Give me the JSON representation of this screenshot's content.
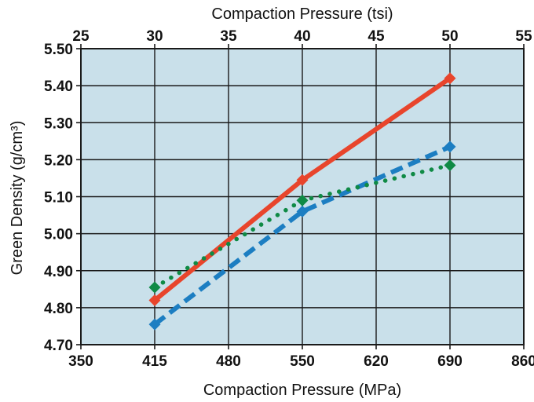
{
  "chart_data": {
    "type": "line",
    "top_title": "(partially cropped)",
    "xlabel_top": "Compaction Pressure (tsi)",
    "xlabel_bottom": "Compaction Pressure (MPa)",
    "ylabel": "Green Density (g/cm³)",
    "x_bottom_ticks": [
      "350",
      "415",
      "480",
      "550",
      "620",
      "690",
      "860"
    ],
    "x_top_ticks": [
      "25",
      "30",
      "35",
      "40",
      "45",
      "50",
      "55"
    ],
    "y_ticks": [
      "4.70",
      "4.80",
      "4.90",
      "5.00",
      "5.10",
      "5.20",
      "5.30",
      "5.40",
      "5.50"
    ],
    "xlim_tsi": [
      25,
      55
    ],
    "ylim": [
      4.7,
      5.5
    ],
    "grid": true,
    "plot_background": "#c9e0ea",
    "series": [
      {
        "color": "#e8452c",
        "line_style": "solid",
        "marker": "diamond",
        "points": [
          {
            "tsi": 30,
            "y": 4.82
          },
          {
            "tsi": 40,
            "y": 5.145
          },
          {
            "tsi": 50,
            "y": 5.42
          }
        ]
      },
      {
        "color": "#1c7ec2",
        "line_style": "dashed",
        "marker": "diamond",
        "points": [
          {
            "tsi": 30,
            "y": 4.755
          },
          {
            "tsi": 40,
            "y": 5.06
          },
          {
            "tsi": 50,
            "y": 5.235
          }
        ]
      },
      {
        "color": "#0f8a45",
        "line_style": "dotted",
        "marker": "diamond",
        "points": [
          {
            "tsi": 30,
            "y": 4.855
          },
          {
            "tsi": 40,
            "y": 5.09
          },
          {
            "tsi": 50,
            "y": 5.185
          }
        ]
      }
    ]
  }
}
